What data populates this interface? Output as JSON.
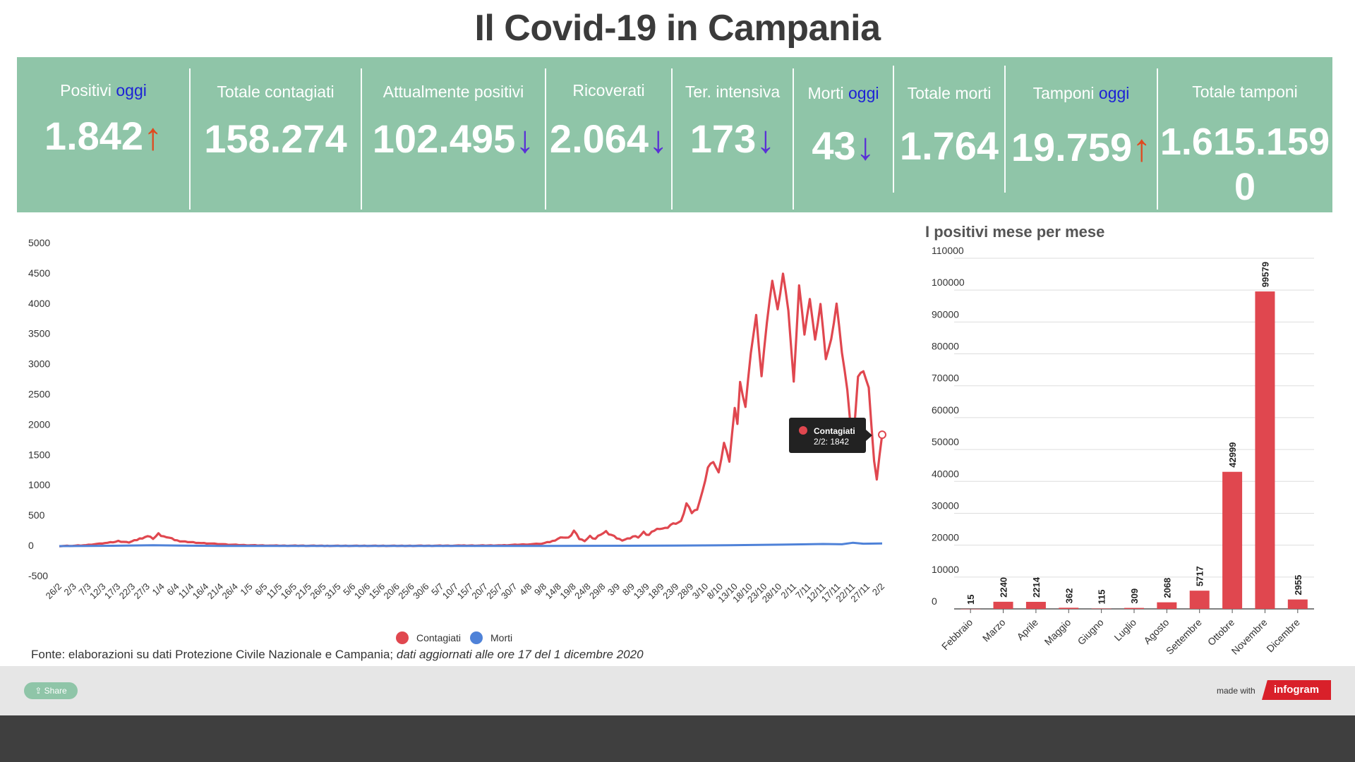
{
  "page_title": "Il Covid-19 in Campania",
  "kpis": [
    {
      "label": "Positivi",
      "highlight": "oggi",
      "value": "1.842",
      "arrow": "↑",
      "dir": "up"
    },
    {
      "label": "Totale contagiati",
      "highlight": "",
      "value": "158.274",
      "arrow": "",
      "dir": ""
    },
    {
      "label": "Attualmente positivi",
      "highlight": "",
      "value": "102.495",
      "arrow": "↓",
      "dir": "down"
    },
    {
      "label": "Ricoverati",
      "highlight": "",
      "value": "2.064",
      "arrow": "↓",
      "dir": "down"
    },
    {
      "label": "Ter. intensiva",
      "highlight": "",
      "value": "173",
      "arrow": "↓",
      "dir": "down"
    },
    {
      "label": "Morti",
      "highlight": "oggi",
      "value": "43",
      "arrow": "↓",
      "dir": "down"
    },
    {
      "label": "Totale morti",
      "highlight": "",
      "value": "1.764",
      "arrow": "",
      "dir": ""
    },
    {
      "label": "Tamponi",
      "highlight": "oggi",
      "value": "19.759",
      "arrow": "↑",
      "dir": "up"
    },
    {
      "label": "Totale tamponi",
      "highlight": "",
      "value": "1.615.159",
      "value2": "0",
      "arrow": "",
      "dir": ""
    }
  ],
  "chart_data": [
    {
      "type": "line",
      "yticks": [
        5000,
        4500,
        4000,
        3500,
        3000,
        2500,
        2000,
        1500,
        1000,
        500,
        0,
        -500
      ],
      "ylim": [
        -500,
        5000
      ],
      "x_tick_labels": [
        "26/2",
        "2/3",
        "7/3",
        "12/3",
        "17/3",
        "22/3",
        "27/3",
        "1/4",
        "6/4",
        "11/4",
        "16/4",
        "21/4",
        "26/4",
        "1/5",
        "6/5",
        "11/5",
        "16/5",
        "21/5",
        "26/5",
        "31/5",
        "5/6",
        "10/6",
        "15/6",
        "20/6",
        "25/6",
        "30/6",
        "5/7",
        "10/7",
        "15/7",
        "20/7",
        "25/7",
        "30/7",
        "4/8",
        "9/8",
        "14/8",
        "19/8",
        "24/8",
        "29/8",
        "3/9",
        "8/9",
        "13/9",
        "18/9",
        "23/9",
        "28/9",
        "3/10",
        "8/10",
        "13/10",
        "18/10",
        "23/10",
        "28/10",
        "2/11",
        "7/11",
        "12/11",
        "17/11",
        "22/11",
        "27/11",
        "2/2"
      ],
      "series": [
        {
          "name": "Contagiati",
          "color": "#e0474f",
          "keypoints": [
            [
              0,
              0
            ],
            [
              5,
              5
            ],
            [
              10,
              15
            ],
            [
              15,
              40
            ],
            [
              18,
              55
            ],
            [
              22,
              80
            ],
            [
              26,
              60
            ],
            [
              30,
              120
            ],
            [
              33,
              170
            ],
            [
              35,
              130
            ],
            [
              37,
              200
            ],
            [
              40,
              150
            ],
            [
              44,
              90
            ],
            [
              48,
              70
            ],
            [
              53,
              50
            ],
            [
              58,
              40
            ],
            [
              63,
              25
            ],
            [
              70,
              15
            ],
            [
              80,
              8
            ],
            [
              100,
              5
            ],
            [
              130,
              5
            ],
            [
              150,
              8
            ],
            [
              165,
              12
            ],
            [
              175,
              30
            ],
            [
              180,
              40
            ],
            [
              184,
              80
            ],
            [
              186,
              120
            ],
            [
              188,
              150
            ],
            [
              190,
              130
            ],
            [
              192,
              250
            ],
            [
              194,
              120
            ],
            [
              196,
              90
            ],
            [
              198,
              160
            ],
            [
              200,
              120
            ],
            [
              202,
              200
            ],
            [
              204,
              230
            ],
            [
              206,
              180
            ],
            [
              208,
              130
            ],
            [
              210,
              100
            ],
            [
              212,
              120
            ],
            [
              214,
              160
            ],
            [
              216,
              150
            ],
            [
              218,
              220
            ],
            [
              220,
              180
            ],
            [
              222,
              260
            ],
            [
              224,
              300
            ],
            [
              226,
              290
            ],
            [
              228,
              350
            ],
            [
              230,
              380
            ],
            [
              232,
              400
            ],
            [
              234,
              700
            ],
            [
              236,
              550
            ],
            [
              238,
              620
            ],
            [
              240,
              900
            ],
            [
              242,
              1300
            ],
            [
              244,
              1400
            ],
            [
              246,
              1200
            ],
            [
              248,
              1700
            ],
            [
              250,
              1400
            ],
            [
              252,
              2300
            ],
            [
              253,
              2000
            ],
            [
              254,
              2700
            ],
            [
              256,
              2300
            ],
            [
              258,
              3200
            ],
            [
              260,
              3800
            ],
            [
              262,
              2800
            ],
            [
              264,
              3700
            ],
            [
              266,
              4400
            ],
            [
              268,
              3900
            ],
            [
              270,
              4500
            ],
            [
              272,
              3900
            ],
            [
              274,
              2700
            ],
            [
              276,
              4300
            ],
            [
              278,
              3500
            ],
            [
              280,
              4100
            ],
            [
              282,
              3400
            ],
            [
              284,
              4000
            ],
            [
              286,
              3100
            ],
            [
              288,
              3400
            ],
            [
              290,
              4000
            ],
            [
              292,
              3200
            ],
            [
              294,
              2600
            ],
            [
              296,
              1600
            ],
            [
              298,
              2800
            ],
            [
              300,
              2900
            ],
            [
              302,
              2600
            ],
            [
              304,
              1400
            ],
            [
              305,
              1100
            ],
            [
              306,
              1500
            ],
            [
              307,
              1840
            ]
          ]
        },
        {
          "name": "Morti",
          "color": "#4f82d8",
          "keypoints": [
            [
              0,
              0
            ],
            [
              20,
              6
            ],
            [
              35,
              15
            ],
            [
              45,
              8
            ],
            [
              60,
              4
            ],
            [
              100,
              2
            ],
            [
              180,
              3
            ],
            [
              230,
              8
            ],
            [
              250,
              15
            ],
            [
              270,
              25
            ],
            [
              285,
              35
            ],
            [
              292,
              30
            ],
            [
              296,
              55
            ],
            [
              300,
              40
            ],
            [
              307,
              43
            ]
          ]
        }
      ],
      "tooltip": {
        "series": "Contagiati",
        "label": "Contagiati",
        "text": "2/2: 1842"
      },
      "legend": [
        "Contagiati",
        "Morti"
      ],
      "legend_position": "bottom"
    },
    {
      "type": "bar",
      "title": "I positivi mese per mese",
      "categories": [
        "Febbraio",
        "Marzo",
        "Aprile",
        "Maggio",
        "Giugno",
        "Luglio",
        "Agosto",
        "Settembre",
        "Ottobre",
        "Novembre",
        "Dicembre"
      ],
      "values": [
        15,
        2240,
        2214,
        362,
        115,
        309,
        2068,
        5717,
        42999,
        99579,
        2955
      ],
      "color": "#e0474f",
      "yticks": [
        110000,
        100000,
        90000,
        80000,
        70000,
        60000,
        50000,
        40000,
        30000,
        20000,
        10000,
        0
      ],
      "ylim": [
        0,
        110000
      ]
    }
  ],
  "source": {
    "text": "Fonte: elaborazioni su dati Protezione Civile Nazionale e Campania; ",
    "italic": "dati aggiornati alle ore 17 del 1 dicembre 2020"
  },
  "footer": {
    "share_label": "Share",
    "made_with": "made with",
    "brand": "infogram"
  }
}
